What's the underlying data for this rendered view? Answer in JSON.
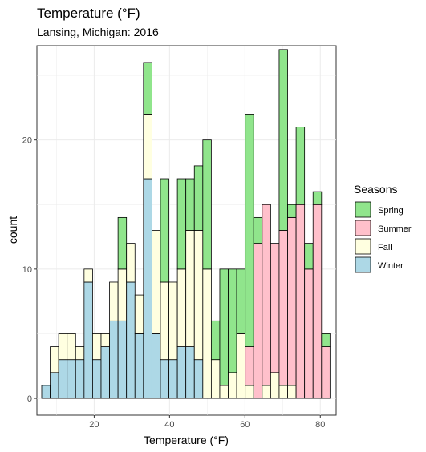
{
  "chart_data": {
    "type": "bar",
    "stacked": true,
    "title": "Temperature (°F)",
    "subtitle": "Lansing, Michigan: 2016",
    "xlabel": "Temperature (°F)",
    "ylabel": "count",
    "xlim": [
      4.8,
      84.2
    ],
    "ylim": [
      -1.3,
      27.3
    ],
    "xticks": [
      20,
      40,
      60,
      80
    ],
    "yticks": [
      0,
      10,
      20
    ],
    "bin_width": 2.25,
    "grid": true,
    "legend": {
      "title": "Seasons",
      "position": "right",
      "entries": [
        "Spring",
        "Summer",
        "Fall",
        "Winter"
      ]
    },
    "colors": {
      "Spring": "#90e58c",
      "Summer": "#ffc0cb",
      "Fall": "#ffffe0",
      "Winter": "#add8e6"
    },
    "bins": [
      7.2,
      9.45,
      11.7,
      13.95,
      16.2,
      18.45,
      20.7,
      22.95,
      25.2,
      27.45,
      29.7,
      31.95,
      34.2,
      36.45,
      38.7,
      40.95,
      43.2,
      45.45,
      47.7,
      49.95,
      52.2,
      54.45,
      56.7,
      58.95,
      61.2,
      63.45,
      65.7,
      67.95,
      70.2,
      72.45,
      74.7,
      76.95,
      79.2,
      81.45
    ],
    "series": [
      {
        "name": "Winter",
        "values": [
          1,
          2,
          3,
          3,
          3,
          9,
          3,
          4,
          6,
          6,
          9,
          5,
          17,
          5,
          3,
          3,
          4,
          4,
          3,
          0,
          0,
          0,
          0,
          0,
          0,
          0,
          0,
          0,
          0,
          0,
          0,
          0,
          0,
          0
        ]
      },
      {
        "name": "Fall",
        "values": [
          0,
          2,
          2,
          2,
          1,
          1,
          2,
          1,
          3,
          4,
          3,
          3,
          5,
          8,
          6,
          6,
          6,
          9,
          10,
          10,
          3,
          1,
          2,
          5,
          1,
          0,
          1,
          2,
          1,
          1,
          0,
          0,
          0,
          0
        ]
      },
      {
        "name": "Summer",
        "values": [
          0,
          0,
          0,
          0,
          0,
          0,
          0,
          0,
          0,
          0,
          0,
          0,
          0,
          0,
          0,
          0,
          0,
          0,
          0,
          0,
          0,
          0,
          0,
          0,
          3,
          12,
          14,
          10,
          12,
          13,
          15,
          10,
          15,
          4
        ]
      },
      {
        "name": "Spring",
        "values": [
          0,
          0,
          0,
          0,
          0,
          0,
          0,
          0,
          0,
          4,
          0,
          0,
          4,
          0,
          8,
          0,
          7,
          4,
          5,
          10,
          3,
          9,
          8,
          5,
          18,
          2,
          0,
          0,
          14,
          1,
          6,
          2,
          1,
          1
        ]
      }
    ]
  }
}
